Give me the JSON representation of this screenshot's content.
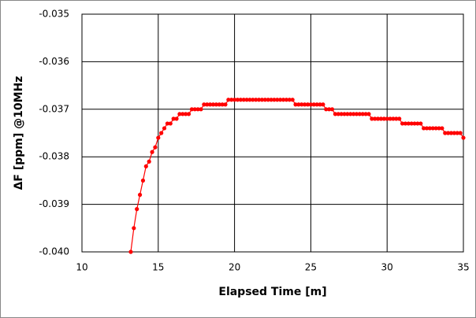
{
  "chart_data": {
    "type": "line",
    "xlabel": "Elapsed Time [m]",
    "ylabel": "ΔF [ppm]  @10MHz",
    "xlim": [
      10,
      35
    ],
    "xticks": [
      10,
      15,
      20,
      25,
      30,
      35
    ],
    "ylim": [
      -0.04,
      -0.035
    ],
    "yticks": [
      {
        "value": -0.04,
        "label": "-0.040"
      },
      -0.039,
      -0.038,
      -0.037,
      -0.036,
      -0.035
    ],
    "grid": true,
    "series": [
      {
        "color": "#ff0000",
        "x": [
          13.2,
          13.4,
          13.6,
          13.8,
          14.0,
          14.2,
          14.4,
          14.6,
          14.8,
          15.0,
          15.2,
          15.4,
          15.6,
          15.8,
          16.0,
          16.2,
          16.4,
          16.6,
          16.8,
          17.0,
          17.2,
          17.4,
          17.6,
          17.8,
          18.0,
          18.2,
          18.4,
          18.6,
          18.8,
          19.0,
          19.2,
          19.4,
          19.6,
          19.8,
          20.0,
          20.2,
          20.4,
          20.6,
          20.8,
          21.0,
          21.2,
          21.4,
          21.6,
          21.8,
          22.0,
          22.2,
          22.4,
          22.6,
          22.8,
          23.0,
          23.2,
          23.4,
          23.6,
          23.8,
          24.0,
          24.2,
          24.4,
          24.6,
          24.8,
          25.0,
          25.2,
          25.4,
          25.6,
          25.8,
          26.0,
          26.2,
          26.4,
          26.6,
          26.8,
          27.0,
          27.2,
          27.4,
          27.6,
          27.8,
          28.0,
          28.2,
          28.4,
          28.6,
          28.8,
          29.0,
          29.2,
          29.4,
          29.6,
          29.8,
          30.0,
          30.2,
          30.4,
          30.6,
          30.8,
          31.0,
          31.2,
          31.4,
          31.6,
          31.8,
          32.0,
          32.2,
          32.4,
          32.6,
          32.8,
          33.0,
          33.2,
          33.4,
          33.6,
          33.8,
          34.0,
          34.2,
          34.4,
          34.6,
          34.8,
          35.0
        ],
        "values": [
          -0.04,
          -0.0395,
          -0.0391,
          -0.0388,
          -0.0385,
          -0.0382,
          -0.0381,
          -0.0379,
          -0.0378,
          -0.0376,
          -0.0375,
          -0.0374,
          -0.0373,
          -0.0373,
          -0.0372,
          -0.0372,
          -0.0371,
          -0.0371,
          -0.0371,
          -0.0371,
          -0.037,
          -0.037,
          -0.037,
          -0.037,
          -0.0369,
          -0.0369,
          -0.0369,
          -0.0369,
          -0.0369,
          -0.0369,
          -0.0369,
          -0.0369,
          -0.0368,
          -0.0368,
          -0.0368,
          -0.0368,
          -0.0368,
          -0.0368,
          -0.0368,
          -0.0368,
          -0.0368,
          -0.0368,
          -0.0368,
          -0.0368,
          -0.0368,
          -0.0368,
          -0.0368,
          -0.0368,
          -0.0368,
          -0.0368,
          -0.0368,
          -0.0368,
          -0.0368,
          -0.0368,
          -0.0369,
          -0.0369,
          -0.0369,
          -0.0369,
          -0.0369,
          -0.0369,
          -0.0369,
          -0.0369,
          -0.0369,
          -0.0369,
          -0.037,
          -0.037,
          -0.037,
          -0.0371,
          -0.0371,
          -0.0371,
          -0.0371,
          -0.0371,
          -0.0371,
          -0.0371,
          -0.0371,
          -0.0371,
          -0.0371,
          -0.0371,
          -0.0371,
          -0.0372,
          -0.0372,
          -0.0372,
          -0.0372,
          -0.0372,
          -0.0372,
          -0.0372,
          -0.0372,
          -0.0372,
          -0.0372,
          -0.0373,
          -0.0373,
          -0.0373,
          -0.0373,
          -0.0373,
          -0.0373,
          -0.0373,
          -0.0374,
          -0.0374,
          -0.0374,
          -0.0374,
          -0.0374,
          -0.0374,
          -0.0374,
          -0.0375,
          -0.0375,
          -0.0375,
          -0.0375,
          -0.0375,
          -0.0375,
          -0.0376
        ]
      }
    ]
  }
}
